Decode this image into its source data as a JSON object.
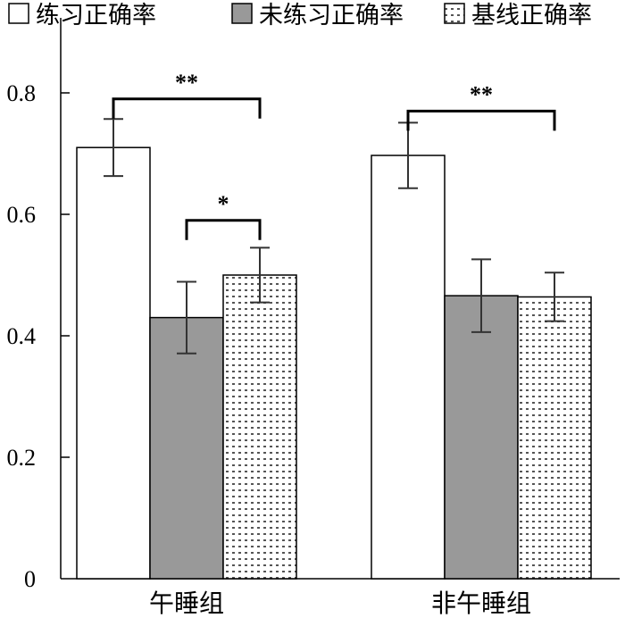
{
  "chart_data": {
    "type": "bar",
    "categories": [
      "午睡组",
      "非午睡组"
    ],
    "series": [
      {
        "name": "练习正确率",
        "values": [
          0.71,
          0.697
        ],
        "errors": [
          0.047,
          0.054
        ],
        "fill": "#ffffff",
        "pattern": "none"
      },
      {
        "name": "未练习正确率",
        "values": [
          0.43,
          0.466
        ],
        "errors": [
          0.059,
          0.06
        ],
        "fill": "#999999",
        "pattern": "none"
      },
      {
        "name": "基线正确率",
        "values": [
          0.5,
          0.464
        ],
        "errors": [
          0.045,
          0.04
        ],
        "fill": "#ffffff",
        "pattern": "dots"
      }
    ],
    "ylim": [
      0,
      0.9
    ],
    "yticks": [
      "0",
      "0.2",
      "0.4",
      "0.6",
      "0.8"
    ],
    "ytick_values": [
      0,
      0.2,
      0.4,
      0.6,
      0.8
    ],
    "legend_position": "top",
    "grid": false,
    "significance": [
      {
        "category": 0,
        "from_series": 0,
        "to_series": 2,
        "label": "**",
        "level": 0.79
      },
      {
        "category": 0,
        "from_series": 1,
        "to_series": 2,
        "label": "*",
        "level": 0.59
      },
      {
        "category": 1,
        "from_series": 0,
        "to_series": 2,
        "label": "**",
        "level": 0.77
      }
    ]
  }
}
